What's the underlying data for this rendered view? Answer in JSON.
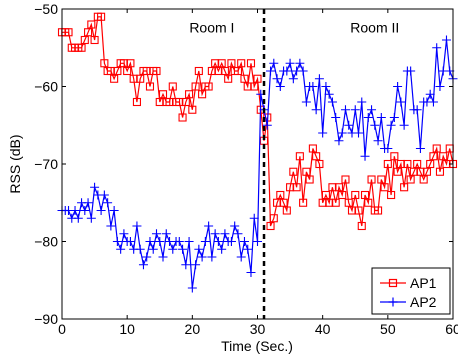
{
  "chart_data": {
    "type": "line",
    "xlabel": "Time (Sec.)",
    "ylabel": "RSS (dB)",
    "xlim": [
      0,
      60
    ],
    "ylim": [
      -90,
      -50
    ],
    "xticks": [
      "0",
      "10",
      "20",
      "30",
      "40",
      "50",
      "60"
    ],
    "yticks": [
      "-90",
      "-80",
      "-70",
      "-60",
      "-50"
    ],
    "grid": false,
    "legend_position": "bottom-right",
    "annotations": [
      {
        "text": "Room I",
        "x": 23,
        "y": -53
      },
      {
        "text": "Room II",
        "x": 48,
        "y": -53
      }
    ],
    "divider_x": 31,
    "series": [
      {
        "name": "AP1",
        "color": "#ff0000",
        "marker": "square",
        "x": [
          0,
          0.5,
          1,
          1.5,
          2,
          2.5,
          3,
          3.5,
          4,
          4.5,
          5,
          5.5,
          6,
          6.5,
          7,
          7.5,
          8,
          8.5,
          9,
          9.5,
          10,
          10.5,
          11,
          11.5,
          12,
          12.5,
          13,
          13.5,
          14,
          14.5,
          15,
          15.5,
          16,
          16.5,
          17,
          17.5,
          18,
          18.5,
          19,
          19.5,
          20,
          20.5,
          21,
          21.5,
          22,
          22.5,
          23,
          23.5,
          24,
          24.5,
          25,
          25.5,
          26,
          26.5,
          27,
          27.5,
          28,
          28.5,
          29,
          29.5,
          30,
          30.5,
          31,
          31.5,
          32,
          32.5,
          33,
          33.5,
          34,
          34.5,
          35,
          35.5,
          36,
          36.5,
          37,
          37.5,
          38,
          38.5,
          39,
          39.5,
          40,
          40.5,
          41,
          41.5,
          42,
          42.5,
          43,
          43.5,
          44,
          44.5,
          45,
          45.5,
          46,
          46.5,
          47,
          47.5,
          48,
          48.5,
          49,
          49.5,
          50,
          50.5,
          51,
          51.5,
          52,
          52.5,
          53,
          53.5,
          54,
          54.5,
          55,
          55.5,
          56,
          56.5,
          57,
          57.5,
          58,
          58.5,
          59,
          59.5,
          60
        ],
        "y": [
          -53,
          -53,
          -53,
          -55,
          -55,
          -55,
          -55,
          -54,
          -53,
          -52,
          -54,
          -51,
          -51,
          -57,
          -58,
          -58,
          -59,
          -58,
          -57,
          -57,
          -58,
          -57,
          -59,
          -62,
          -59,
          -58,
          -58,
          -60,
          -58,
          -58,
          -62,
          -61,
          -62,
          -62,
          -60,
          -62,
          -62,
          -64,
          -62,
          -61,
          -63,
          -60,
          -58,
          -61,
          -60,
          -60,
          -58,
          -57,
          -58,
          -57,
          -58,
          -59,
          -57,
          -58,
          -58,
          -57,
          -59,
          -60,
          -57,
          -60,
          -59,
          -63,
          -67,
          -64,
          -78,
          -77,
          -75,
          -74,
          -75,
          -76,
          -73,
          -71,
          -73,
          -69,
          -75,
          -71,
          -72,
          -68,
          -69,
          -70,
          -75,
          -74,
          -75,
          -73,
          -75,
          -73,
          -74,
          -72,
          -75,
          -76,
          -74,
          -76,
          -78,
          -74,
          -75,
          -72,
          -76,
          -76,
          -72,
          -73,
          -70,
          -74,
          -69,
          -71,
          -70,
          -73,
          -70,
          -72,
          -71,
          -70,
          -71,
          -72,
          -71,
          -70,
          -69,
          -68,
          -71,
          -69,
          -70,
          -68,
          -70
        ]
      },
      {
        "name": "AP2",
        "color": "#0000ff",
        "marker": "plus",
        "x": [
          0,
          0.5,
          1,
          1.5,
          2,
          2.5,
          3,
          3.5,
          4,
          4.5,
          5,
          5.5,
          6,
          6.5,
          7,
          7.5,
          8,
          8.5,
          9,
          9.5,
          10,
          10.5,
          11,
          11.5,
          12,
          12.5,
          13,
          13.5,
          14,
          14.5,
          15,
          15.5,
          16,
          16.5,
          17,
          17.5,
          18,
          18.5,
          19,
          19.5,
          20,
          20.5,
          21,
          21.5,
          22,
          22.5,
          23,
          23.5,
          24,
          24.5,
          25,
          25.5,
          26,
          26.5,
          27,
          27.5,
          28,
          28.5,
          29,
          29.5,
          30,
          30.5,
          31,
          31.5,
          32,
          32.5,
          33,
          33.5,
          34,
          34.5,
          35,
          35.5,
          36,
          36.5,
          37,
          37.5,
          38,
          38.5,
          39,
          39.5,
          40,
          40.5,
          41,
          41.5,
          42,
          42.5,
          43,
          43.5,
          44,
          44.5,
          45,
          45.5,
          46,
          46.5,
          47,
          47.5,
          48,
          48.5,
          49,
          49.5,
          50,
          50.5,
          51,
          51.5,
          52,
          52.5,
          53,
          53.5,
          54,
          54.5,
          55,
          55.5,
          56,
          56.5,
          57,
          57.5,
          58,
          58.5,
          59,
          59.5,
          60
        ],
        "y": [
          -76,
          -76,
          -76,
          -77,
          -76,
          -77,
          -75,
          -76,
          -75,
          -77,
          -73,
          -74,
          -76,
          -74,
          -75,
          -78,
          -76,
          -80,
          -81,
          -79,
          -80,
          -80,
          -81,
          -78,
          -81,
          -83,
          -82,
          -80,
          -81,
          -79,
          -80,
          -82,
          -79,
          -80,
          -81,
          -80,
          -80,
          -81,
          -83,
          -80,
          -86,
          -83,
          -81,
          -82,
          -80,
          -78,
          -82,
          -79,
          -80,
          -81,
          -79,
          -80,
          -80,
          -78,
          -79,
          -82,
          -80,
          -81,
          -84,
          -77,
          -80,
          -61,
          -63,
          -65,
          -58,
          -57,
          -59,
          -60,
          -58,
          -58,
          -57,
          -59,
          -58,
          -57,
          -58,
          -62,
          -60,
          -60,
          -63,
          -59,
          -66,
          -60,
          -61,
          -62,
          -64,
          -67,
          -66,
          -63,
          -65,
          -66,
          -63,
          -66,
          -62,
          -69,
          -64,
          -63,
          -65,
          -67,
          -64,
          -68,
          -68,
          -65,
          -64,
          -60,
          -62,
          -65,
          -58,
          -58,
          -63,
          -63,
          -68,
          -62,
          -62,
          -61,
          -62,
          -55,
          -60,
          -58,
          -54,
          -58,
          -59
        ]
      }
    ]
  }
}
